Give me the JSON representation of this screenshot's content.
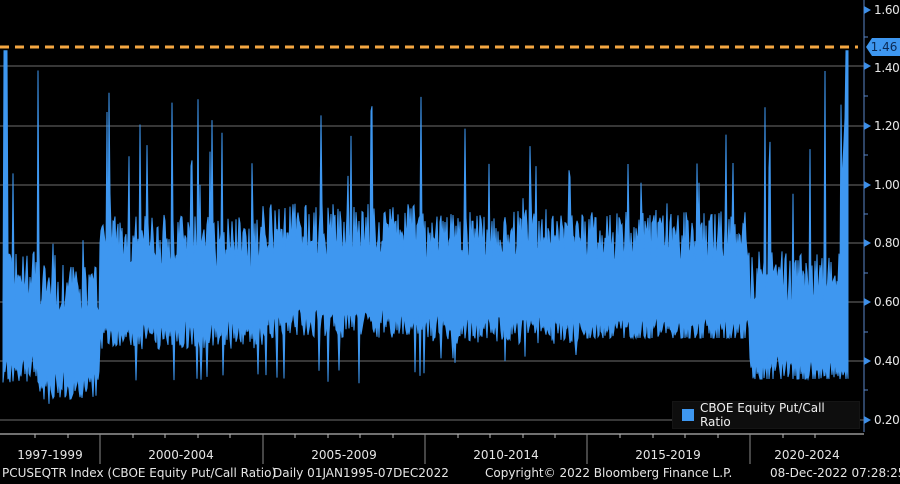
{
  "chart_data": {
    "type": "area",
    "title": "PCUSEQTR Index (CBOE Equity Put/Call Ratio) Daily 01JAN1995-07DEC2022",
    "xlabel": "",
    "ylabel": "",
    "ylim": [
      0.2,
      1.6
    ],
    "y_ticks": [
      "0.20",
      "0.40",
      "0.60",
      "0.80",
      "1.00",
      "1.20",
      "1.40",
      "1.60"
    ],
    "x_categories": [
      "1997-1999",
      "2000-2004",
      "2005-2009",
      "2010-2014",
      "2015-2019",
      "2020-2024"
    ],
    "grid": true,
    "legend_position": "bottom-right",
    "series": [
      {
        "name": "CBOE Equity Put/Call Ratio",
        "color": "#3e97f0",
        "approx_envelope": [
          {
            "period": "1995-1996",
            "low": 0.32,
            "high": 1.46,
            "typical": 0.5
          },
          {
            "period": "1997-1999",
            "low": 0.24,
            "high": 0.86,
            "typical": 0.45
          },
          {
            "period": "2000-2004",
            "low": 0.33,
            "high": 1.32,
            "typical": 0.62
          },
          {
            "period": "2005-2009",
            "low": 0.32,
            "high": 1.35,
            "typical": 0.66
          },
          {
            "period": "2010-2014",
            "low": 0.38,
            "high": 1.22,
            "typical": 0.64
          },
          {
            "period": "2015-2019",
            "low": 0.48,
            "high": 1.23,
            "typical": 0.63
          },
          {
            "period": "2020-2022",
            "low": 0.34,
            "high": 1.46,
            "typical": 0.5
          }
        ]
      }
    ],
    "annotations": [
      {
        "type": "hline",
        "value": 1.46,
        "style": "dashed",
        "color": "#f5a742"
      },
      {
        "type": "last_value_badge",
        "value": "1.46"
      }
    ]
  },
  "axis": {
    "y_labels": [
      "1.60",
      "1.40",
      "1.20",
      "1.00",
      "0.80",
      "0.60",
      "0.40",
      "0.20"
    ],
    "last_value": "1.46",
    "x_labels": [
      "1997-1999",
      "2000-2004",
      "2005-2009",
      "2010-2014",
      "2015-2019",
      "2020-2024"
    ]
  },
  "legend": {
    "label": "CBOE Equity Put/Call Ratio"
  },
  "footer": {
    "security": "PCUSEQTR Index (CBOE Equity Put/Call Ratio)",
    "range": "Daily 01JAN1995-07DEC2022",
    "copyright": "Copyright© 2022 Bloomberg Finance L.P.",
    "timestamp": "08-Dec-2022 07:28:25"
  },
  "colors": {
    "series": "#3e97f0",
    "reference_line": "#f5a742",
    "grid": "#7a7a7a",
    "background": "#000000"
  }
}
